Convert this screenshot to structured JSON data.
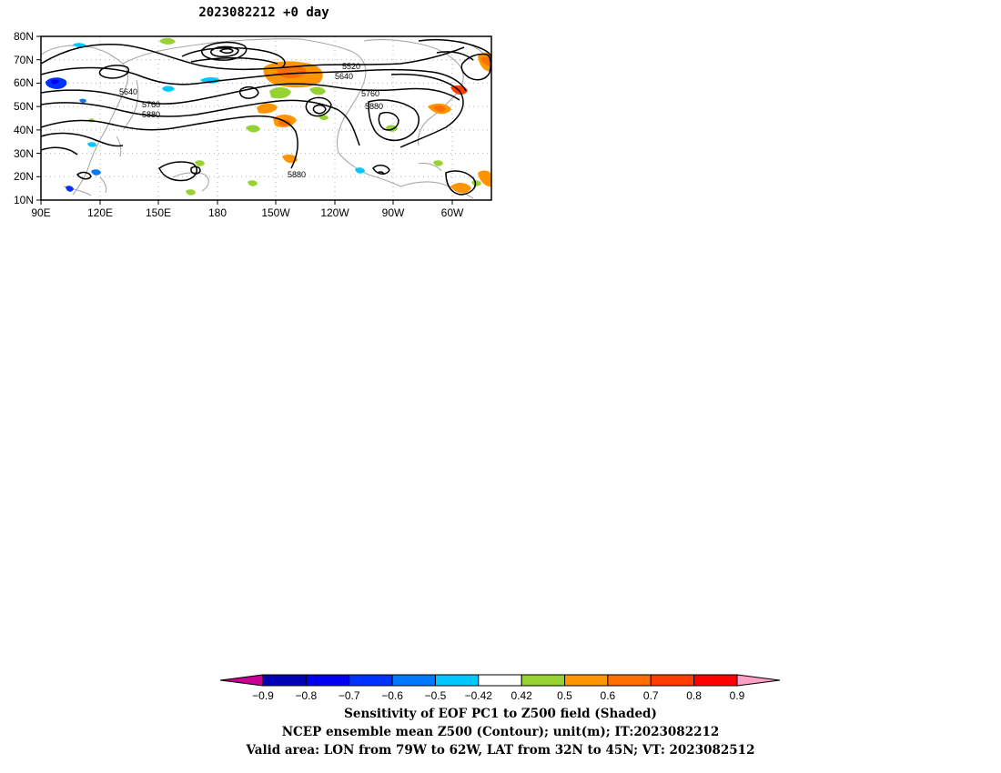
{
  "title": "2023082212  +0 day",
  "map": {
    "lat_labels": [
      "80N",
      "70N",
      "60N",
      "50N",
      "40N",
      "30N",
      "20N",
      "10N"
    ],
    "lon_labels": [
      "90E",
      "120E",
      "150E",
      "180",
      "150W",
      "120W",
      "90W",
      "60W"
    ],
    "contour_labels": [
      "5520",
      "5640",
      "5640",
      "5760",
      "5760",
      "5880",
      "5880",
      "5880"
    ],
    "contour_color": "#000000",
    "coastline_color": "#a8a8a8",
    "grid": "dotted"
  },
  "colorbar": {
    "ticks": [
      "-0.9",
      "-0.8",
      "-0.7",
      "-0.6",
      "-0.5",
      "-0.42",
      "0.42",
      "0.5",
      "0.6",
      "0.7",
      "0.8",
      "0.9"
    ],
    "colors": [
      "#0000b4",
      "#0000f0",
      "#0032ff",
      "#0078ff",
      "#00c8ff",
      "#ffffff",
      "#96d232",
      "#ff9600",
      "#ff6e00",
      "#ff3c00",
      "#ff0000"
    ],
    "low_extend_color": "#c80096",
    "high_extend_color": "#ffa0c8"
  },
  "captions": [
    "Sensitivity of EOF PC1 to Z500 field (Shaded)",
    "NCEP ensemble mean Z500 (Contour); unit(m); IT:2023082212",
    "Valid area: LON from 79W to 62W, LAT from 32N to 45N; VT: 2023082512"
  ]
}
